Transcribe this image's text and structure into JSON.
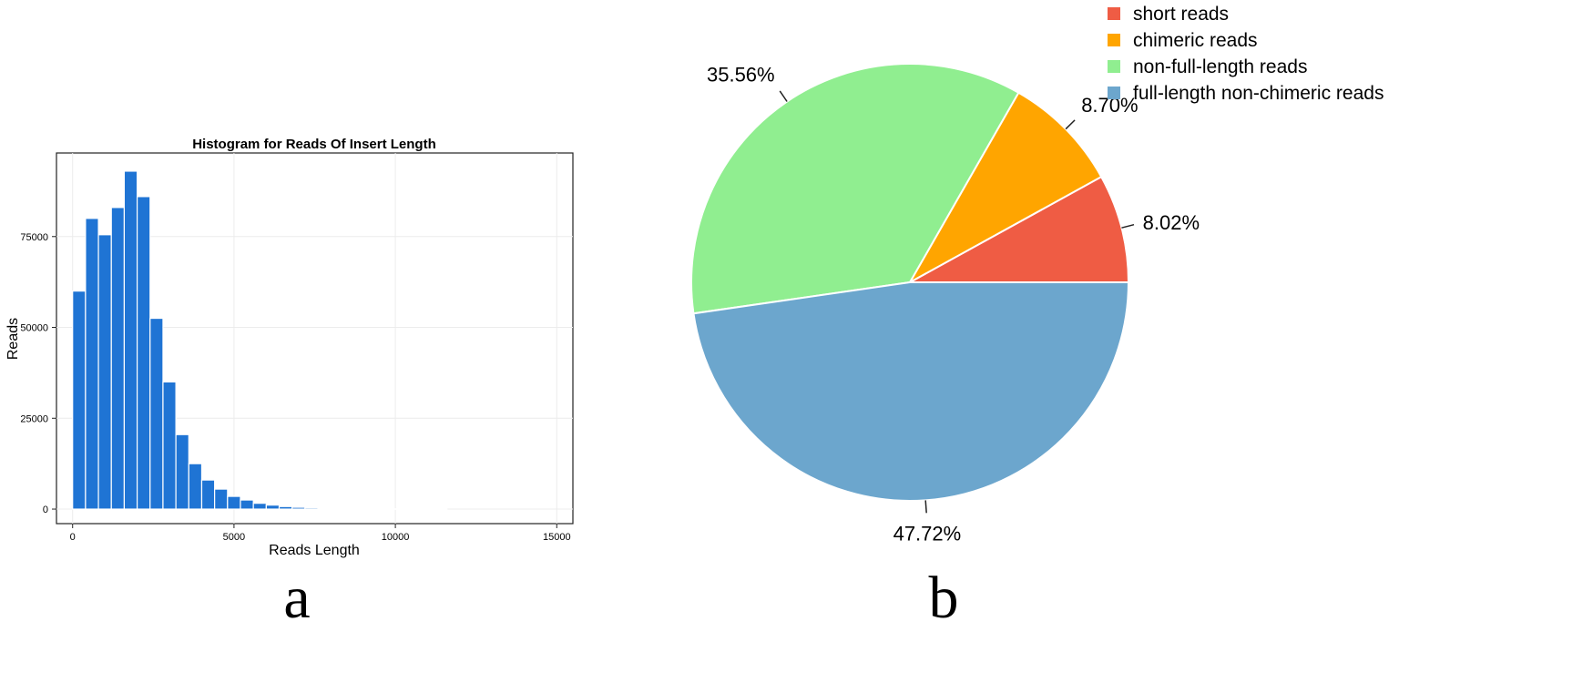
{
  "chart_data": [
    {
      "type": "bar",
      "title": "Histogram for Reads Of Insert Length",
      "xlabel": "Reads Length",
      "ylabel": "Reads",
      "xlim": [
        -500,
        15500
      ],
      "ylim": [
        -4000,
        98000
      ],
      "x_ticks": [
        0,
        5000,
        10000,
        15000
      ],
      "y_ticks": [
        0,
        25000,
        50000,
        75000
      ],
      "bin_width": 400,
      "bin_starts": [
        0,
        400,
        800,
        1200,
        1600,
        2000,
        2400,
        2800,
        3200,
        3600,
        4000,
        4400,
        4800,
        5200,
        5600,
        6000,
        6400,
        6800,
        7200,
        7600,
        8000,
        8400,
        8800,
        9200,
        9600,
        10000,
        10400,
        10800,
        11200
      ],
      "values": [
        60000,
        80000,
        75500,
        83000,
        93000,
        86000,
        52500,
        35000,
        20500,
        12500,
        8000,
        5500,
        3500,
        2500,
        1600,
        1100,
        700,
        500,
        350,
        250,
        180,
        130,
        100,
        80,
        60,
        50,
        40,
        30,
        20
      ],
      "bar_color": "#1f74d4",
      "grid": true,
      "panel_label": "a"
    },
    {
      "type": "pie",
      "labels": [
        "short reads",
        "chimeric reads",
        "non-full-length reads",
        "full-length non-chimeric reads"
      ],
      "values": [
        8.02,
        8.7,
        35.56,
        47.72
      ],
      "value_labels": [
        "8.02%",
        "8.70%",
        "35.56%",
        "47.72%"
      ],
      "colors": [
        "#ef5c44",
        "#ffa500",
        "#90ee90",
        "#6ca6cd"
      ],
      "legend_position": "top-right",
      "panel_label": "b"
    }
  ]
}
